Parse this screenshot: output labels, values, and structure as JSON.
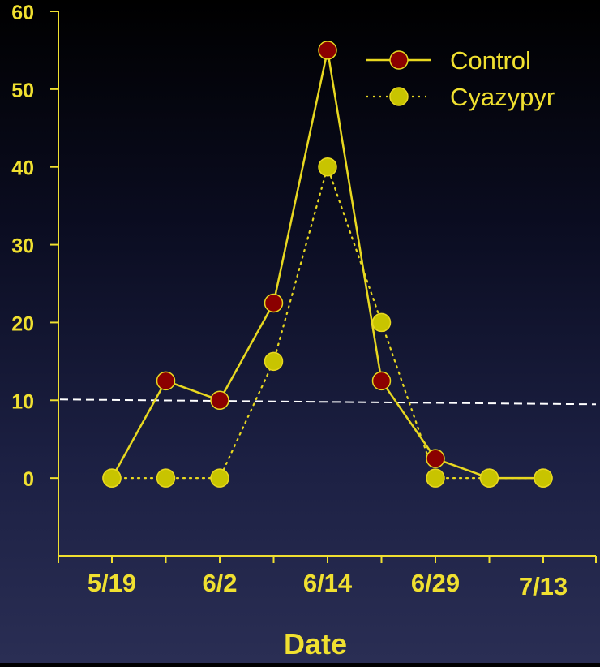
{
  "chart_data": {
    "type": "line",
    "xlabel": "Date",
    "ylabel": "",
    "ylim": [
      -10,
      60
    ],
    "yticks": [
      0,
      10,
      20,
      30,
      40,
      50,
      60
    ],
    "x_tick_labels": [
      "5/19",
      "6/2",
      "6/14",
      "6/29",
      "7/13"
    ],
    "x_positions": [
      0,
      1,
      2,
      3,
      4,
      5,
      6,
      7,
      8
    ],
    "threshold": 10,
    "grid": false,
    "legend_position": "top-right",
    "series": [
      {
        "name": "Control",
        "style": "solid",
        "values": [
          0,
          12.5,
          10,
          22.5,
          55,
          12.5,
          2.5,
          0,
          0
        ]
      },
      {
        "name": "Cyazypyr",
        "style": "dotted",
        "values": [
          0,
          0,
          0,
          15,
          40,
          20,
          0,
          0,
          0
        ]
      }
    ]
  },
  "colors": {
    "axis": "#f0e030",
    "text": "#f0e030",
    "line": "#e8d820",
    "control_marker": "#8b0000",
    "cyazypyr_marker": "#c8c400",
    "threshold": "#ffffff"
  }
}
